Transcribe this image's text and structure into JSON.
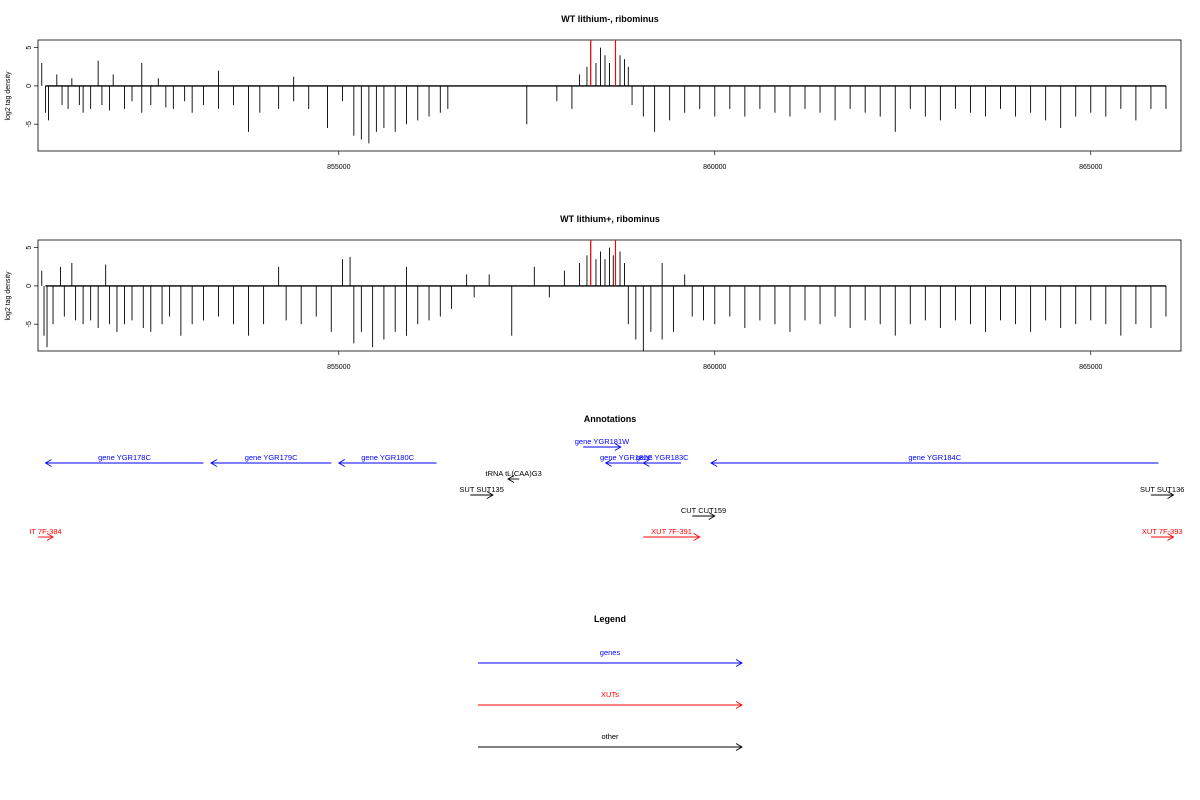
{
  "colors": {
    "gene": "#0000ff",
    "xut": "#ff0000",
    "other": "#000000",
    "bar": "#000000",
    "highlight": "#ff0000"
  },
  "chart_data": [
    {
      "type": "bar",
      "title": "WT lithium-, ribominus",
      "ylabel": "log2 tag density",
      "xlim": [
        851000,
        866200
      ],
      "ylim": [
        -8.5,
        6
      ],
      "x_ticks": [
        855000,
        860000,
        865000
      ],
      "y_ticks": [
        5,
        0,
        -5
      ],
      "x_tick_labels": [
        "855000",
        "860000",
        "865000"
      ],
      "y_tick_labels": [
        "5",
        "0",
        "-5"
      ],
      "series": [
        {
          "values": [
            [
              851050,
              3.0
            ],
            [
              851100,
              -3.5
            ],
            [
              851140,
              -4.5
            ],
            [
              851250,
              1.5
            ],
            [
              851320,
              -2.5
            ],
            [
              851400,
              -3.0
            ],
            [
              851450,
              1.0
            ],
            [
              851550,
              -2.5
            ],
            [
              851600,
              -3.5
            ],
            [
              851700,
              -3.0
            ],
            [
              851800,
              3.3
            ],
            [
              851850,
              -2.5
            ],
            [
              851950,
              -3.2
            ],
            [
              852000,
              1.5
            ],
            [
              852150,
              -3.0
            ],
            [
              852250,
              -2.0
            ],
            [
              852380,
              3.0
            ],
            [
              852380,
              -3.5
            ],
            [
              852500,
              -2.5
            ],
            [
              852600,
              1.0
            ],
            [
              852700,
              -2.8
            ],
            [
              852800,
              -3.0
            ],
            [
              852950,
              -2.0
            ],
            [
              853050,
              -3.5
            ],
            [
              853200,
              -2.5
            ],
            [
              853400,
              2.0
            ],
            [
              853400,
              -3.0
            ],
            [
              853600,
              -2.5
            ],
            [
              853800,
              -6.0
            ],
            [
              853950,
              -3.5
            ],
            [
              854200,
              -3.0
            ],
            [
              854400,
              1.2
            ],
            [
              854400,
              -2.0
            ],
            [
              854600,
              -3.0
            ],
            [
              854850,
              -5.5
            ],
            [
              855050,
              -2.0
            ],
            [
              855200,
              -6.5
            ],
            [
              855300,
              -7.0
            ],
            [
              855400,
              -7.5
            ],
            [
              855500,
              -6.0
            ],
            [
              855600,
              -5.5
            ],
            [
              855750,
              -6.0
            ],
            [
              855900,
              -5.0
            ],
            [
              856050,
              -4.5
            ],
            [
              856200,
              -4.0
            ],
            [
              856350,
              -3.5
            ],
            [
              856450,
              -3.0
            ],
            [
              857500,
              -5.0
            ],
            [
              857900,
              -2.0
            ],
            [
              858100,
              -3.0
            ],
            [
              858200,
              1.5
            ],
            [
              858300,
              2.5
            ],
            [
              858350,
              6.0
            ],
            [
              858420,
              3.0
            ],
            [
              858480,
              5.0
            ],
            [
              858540,
              4.0
            ],
            [
              858600,
              3.0
            ],
            [
              858680,
              6.0
            ],
            [
              858740,
              4.0
            ],
            [
              858800,
              3.5
            ],
            [
              858850,
              2.5
            ],
            [
              858900,
              -2.5
            ],
            [
              859050,
              -4.0
            ],
            [
              859200,
              -6.0
            ],
            [
              859400,
              -4.5
            ],
            [
              859600,
              -3.5
            ],
            [
              859800,
              -3.0
            ],
            [
              860000,
              -4.0
            ],
            [
              860200,
              -3.0
            ],
            [
              860400,
              -4.0
            ],
            [
              860600,
              -3.0
            ],
            [
              860800,
              -3.5
            ],
            [
              861000,
              -4.0
            ],
            [
              861200,
              -3.0
            ],
            [
              861400,
              -3.5
            ],
            [
              861600,
              -4.5
            ],
            [
              861800,
              -3.0
            ],
            [
              862000,
              -3.5
            ],
            [
              862200,
              -4.0
            ],
            [
              862400,
              -6.0
            ],
            [
              862600,
              -3.0
            ],
            [
              862800,
              -4.0
            ],
            [
              863000,
              -4.5
            ],
            [
              863200,
              -3.0
            ],
            [
              863400,
              -3.5
            ],
            [
              863600,
              -4.0
            ],
            [
              863800,
              -3.0
            ],
            [
              864000,
              -4.0
            ],
            [
              864200,
              -3.5
            ],
            [
              864400,
              -4.5
            ],
            [
              864600,
              -5.5
            ],
            [
              864800,
              -4.0
            ],
            [
              865000,
              -3.5
            ],
            [
              865200,
              -4.0
            ],
            [
              865400,
              -3.0
            ],
            [
              865600,
              -4.5
            ],
            [
              865800,
              -3.0
            ],
            [
              866000,
              -3.0
            ]
          ],
          "highlights": [
            [
              858350,
              6.0
            ],
            [
              858680,
              6.0
            ]
          ]
        }
      ]
    },
    {
      "type": "bar",
      "title": "WT lithium+, ribominus",
      "ylabel": "log2 tag density",
      "xlim": [
        851000,
        866200
      ],
      "ylim": [
        -8.5,
        6
      ],
      "x_ticks": [
        855000,
        860000,
        865000
      ],
      "y_ticks": [
        5,
        0,
        -5
      ],
      "x_tick_labels": [
        "855000",
        "860000",
        "865000"
      ],
      "y_tick_labels": [
        "5",
        "0",
        "-5"
      ],
      "series": [
        {
          "values": [
            [
              851050,
              2.0
            ],
            [
              851080,
              -6.5
            ],
            [
              851120,
              -8.0
            ],
            [
              851200,
              -5.0
            ],
            [
              851300,
              2.5
            ],
            [
              851350,
              -4.0
            ],
            [
              851450,
              3.0
            ],
            [
              851500,
              -4.5
            ],
            [
              851600,
              -5.0
            ],
            [
              851700,
              -4.5
            ],
            [
              851800,
              -5.5
            ],
            [
              851900,
              2.8
            ],
            [
              851950,
              -5.0
            ],
            [
              852050,
              -6.0
            ],
            [
              852150,
              -5.0
            ],
            [
              852250,
              -4.5
            ],
            [
              852400,
              -5.5
            ],
            [
              852500,
              -6.0
            ],
            [
              852650,
              -5.0
            ],
            [
              852750,
              -4.0
            ],
            [
              852900,
              -6.5
            ],
            [
              853050,
              -5.0
            ],
            [
              853200,
              -4.5
            ],
            [
              853400,
              -4.0
            ],
            [
              853600,
              -5.0
            ],
            [
              853800,
              -6.5
            ],
            [
              854000,
              -5.0
            ],
            [
              854200,
              2.5
            ],
            [
              854300,
              -4.5
            ],
            [
              854500,
              -5.0
            ],
            [
              854700,
              -4.0
            ],
            [
              854900,
              -6.0
            ],
            [
              855050,
              3.5
            ],
            [
              855150,
              3.8
            ],
            [
              855200,
              -7.5
            ],
            [
              855300,
              -6.0
            ],
            [
              855450,
              -8.0
            ],
            [
              855600,
              -7.0
            ],
            [
              855750,
              -6.0
            ],
            [
              855900,
              2.5
            ],
            [
              855900,
              -6.5
            ],
            [
              856050,
              -5.0
            ],
            [
              856200,
              -4.5
            ],
            [
              856350,
              -4.0
            ],
            [
              856500,
              -3.0
            ],
            [
              856700,
              1.5
            ],
            [
              856800,
              -1.5
            ],
            [
              857000,
              1.5
            ],
            [
              857300,
              -6.5
            ],
            [
              857600,
              2.5
            ],
            [
              857800,
              -1.5
            ],
            [
              858000,
              2.0
            ],
            [
              858200,
              3.0
            ],
            [
              858300,
              4.0
            ],
            [
              858350,
              6.0
            ],
            [
              858420,
              3.5
            ],
            [
              858480,
              4.5
            ],
            [
              858540,
              3.5
            ],
            [
              858600,
              5.0
            ],
            [
              858650,
              4.0
            ],
            [
              858680,
              6.0
            ],
            [
              858740,
              4.5
            ],
            [
              858800,
              3.0
            ],
            [
              858850,
              -5.0
            ],
            [
              858950,
              -7.0
            ],
            [
              859050,
              -8.5
            ],
            [
              859150,
              -6.0
            ],
            [
              859300,
              3.0
            ],
            [
              859300,
              -7.0
            ],
            [
              859450,
              -6.0
            ],
            [
              859600,
              1.5
            ],
            [
              859700,
              -4.0
            ],
            [
              859850,
              -4.5
            ],
            [
              860000,
              -5.0
            ],
            [
              860200,
              -4.0
            ],
            [
              860400,
              -5.5
            ],
            [
              860600,
              -4.5
            ],
            [
              860800,
              -5.0
            ],
            [
              861000,
              -6.0
            ],
            [
              861200,
              -4.5
            ],
            [
              861400,
              -5.0
            ],
            [
              861600,
              -4.0
            ],
            [
              861800,
              -5.5
            ],
            [
              862000,
              -4.5
            ],
            [
              862200,
              -5.0
            ],
            [
              862400,
              -6.5
            ],
            [
              862600,
              -5.0
            ],
            [
              862800,
              -4.5
            ],
            [
              863000,
              -5.5
            ],
            [
              863200,
              -4.5
            ],
            [
              863400,
              -5.0
            ],
            [
              863600,
              -6.0
            ],
            [
              863800,
              -4.5
            ],
            [
              864000,
              -5.0
            ],
            [
              864200,
              -6.0
            ],
            [
              864400,
              -4.5
            ],
            [
              864600,
              -5.5
            ],
            [
              864800,
              -5.0
            ],
            [
              865000,
              -4.5
            ],
            [
              865200,
              -5.0
            ],
            [
              865400,
              -6.5
            ],
            [
              865600,
              -5.0
            ],
            [
              865800,
              -5.5
            ],
            [
              866000,
              -4.0
            ]
          ],
          "highlights": [
            [
              858350,
              6.0
            ],
            [
              858680,
              6.0
            ]
          ]
        }
      ]
    }
  ],
  "annotations": {
    "title": "Annotations",
    "xlim": [
      851000,
      866200
    ],
    "items": [
      {
        "label": "gene YGR178C",
        "kind": "gene",
        "start": 853200,
        "end": 851100,
        "row": 0
      },
      {
        "label": "gene YGR179C",
        "kind": "gene",
        "start": 854900,
        "end": 853300,
        "row": 0
      },
      {
        "label": "gene YGR180C",
        "kind": "gene",
        "start": 856300,
        "end": 855000,
        "row": 0
      },
      {
        "label": "gene YGR181W",
        "kind": "gene",
        "start": 858250,
        "end": 858750,
        "row": -1
      },
      {
        "label": "gene YGR182C",
        "kind": "gene",
        "start": 859100,
        "end": 858550,
        "row": 0
      },
      {
        "label": "gene YGR183C",
        "kind": "gene",
        "start": 859550,
        "end": 859050,
        "row": 0
      },
      {
        "label": "gene YGR184C",
        "kind": "gene",
        "start": 865900,
        "end": 859950,
        "row": 0
      },
      {
        "label": "tRNA tL(CAA)G3",
        "kind": "other",
        "start": 857400,
        "end": 857250,
        "row": 1
      },
      {
        "label": "SUT SUT135",
        "kind": "other",
        "start": 856750,
        "end": 857050,
        "row": 2
      },
      {
        "label": "SUT SUT136",
        "kind": "other",
        "start": 865800,
        "end": 866100,
        "row": 2
      },
      {
        "label": "CUT CUT159",
        "kind": "other",
        "start": 859700,
        "end": 860000,
        "row": 3
      },
      {
        "label": "IT 7F-384",
        "kind": "xut",
        "start": 851000,
        "end": 851200,
        "row": 4
      },
      {
        "label": "XUT 7F-391",
        "kind": "xut",
        "start": 859050,
        "end": 859800,
        "row": 4
      },
      {
        "label": "XUT 7F-393",
        "kind": "xut",
        "start": 865800,
        "end": 866100,
        "row": 4
      }
    ]
  },
  "legend": {
    "title": "Legend",
    "items": [
      {
        "label": "genes",
        "kind": "gene"
      },
      {
        "label": "XUTs",
        "kind": "xut"
      },
      {
        "label": "other",
        "kind": "other"
      }
    ]
  }
}
